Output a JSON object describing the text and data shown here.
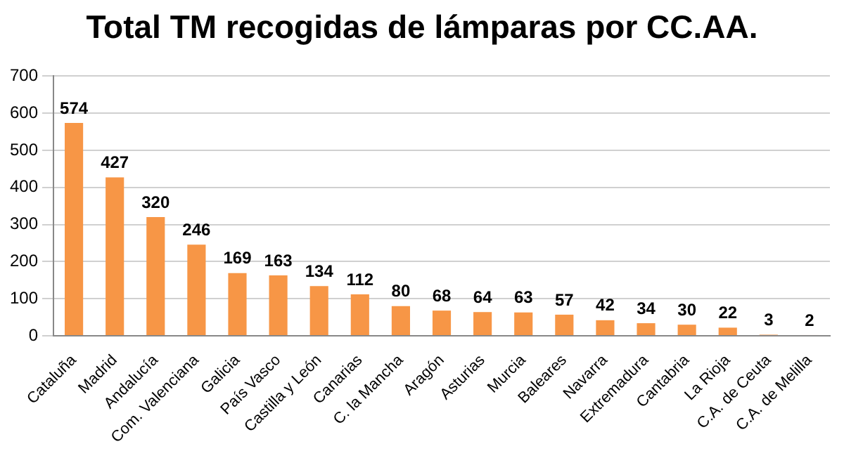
{
  "chart_data": {
    "type": "bar",
    "title": "Total TM recogidas de lámparas por CC.AA.",
    "categories": [
      "Cataluña",
      "Madrid",
      "Andalucía",
      "Com. Valenciana",
      "Galicia",
      "País Vasco",
      "Castilla y León",
      "Canarias",
      "C. la Mancha",
      "Aragón",
      "Asturias",
      "Murcia",
      "Baleares",
      "Navarra",
      "Extremadura",
      "Cantabria",
      "La Rioja",
      "C.A. de Ceuta",
      "C.A. de Melilla"
    ],
    "values": [
      574,
      427,
      320,
      246,
      169,
      163,
      134,
      112,
      80,
      68,
      64,
      63,
      57,
      42,
      34,
      30,
      22,
      3,
      2
    ],
    "color": "#f79646",
    "ylim": [
      0,
      700
    ],
    "yticks": [
      0,
      100,
      200,
      300,
      400,
      500,
      600,
      700
    ],
    "grid": "y",
    "legend": false,
    "data_labels": true
  }
}
